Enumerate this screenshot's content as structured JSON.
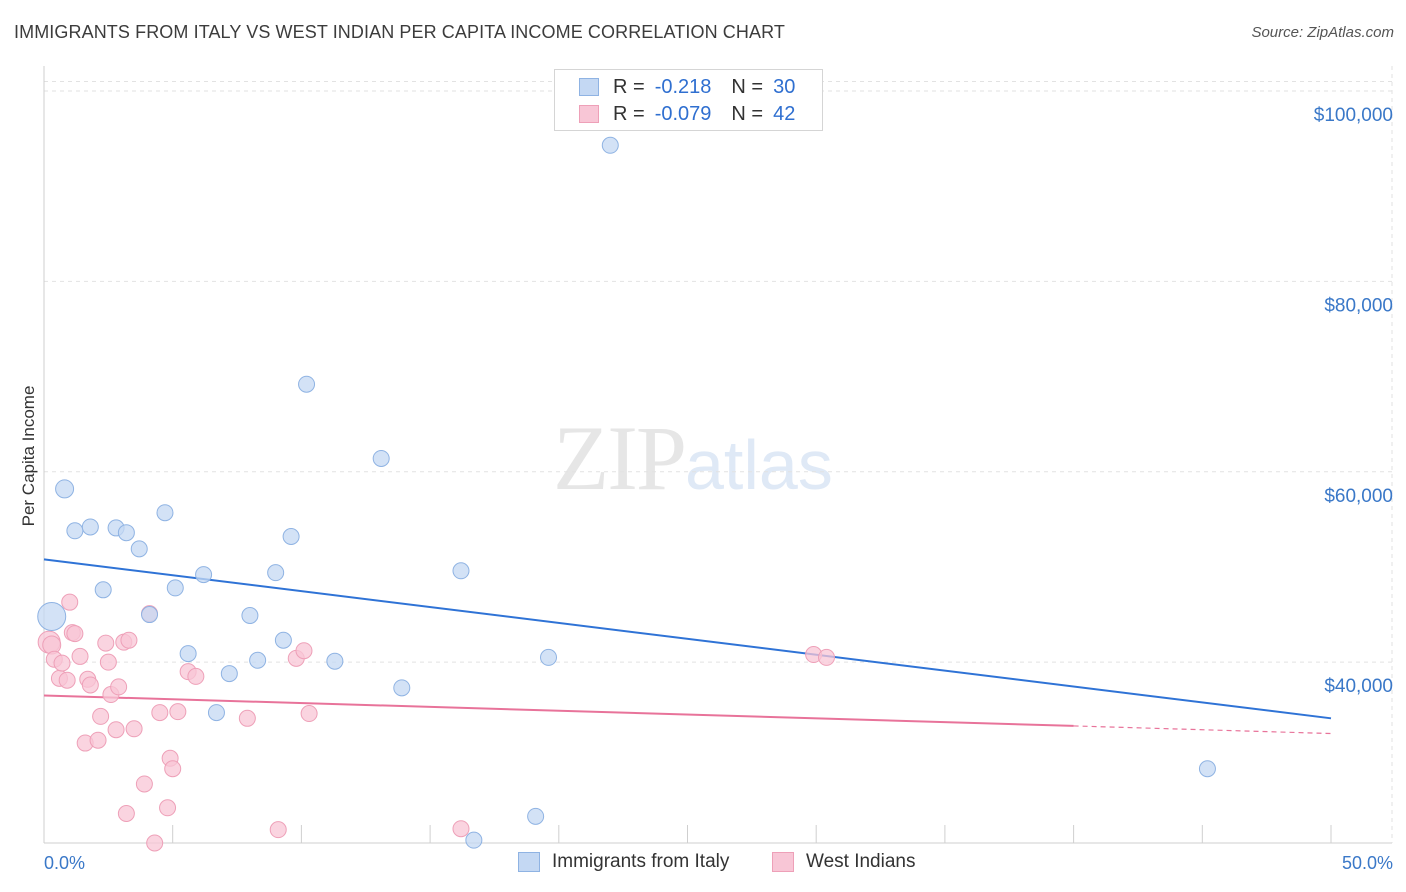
{
  "header": {
    "title": "IMMIGRANTS FROM ITALY VS WEST INDIAN PER CAPITA INCOME CORRELATION CHART",
    "source": "Source: ZipAtlas.com"
  },
  "watermark": {
    "zip": "ZIP",
    "atlas": "atlas"
  },
  "legend": {
    "rows": [
      {
        "r_label": "R =",
        "r_value": "-0.218",
        "n_label": "N =",
        "n_value": "30"
      },
      {
        "r_label": "R =",
        "r_value": "-0.079",
        "n_label": "N =",
        "n_value": "42"
      }
    ]
  },
  "bottom_legend": {
    "series1": "Immigrants from Italy",
    "series2": "West Indians"
  },
  "colors": {
    "blue_fill": "#c4d8f3",
    "blue_stroke": "#8fb3e3",
    "blue_line": "#2f73d6",
    "pink_fill": "#f8c6d6",
    "pink_stroke": "#eea0b8",
    "pink_line": "#e8739a"
  },
  "chart_data": {
    "type": "scatter",
    "title": "IMMIGRANTS FROM ITALY VS WEST INDIAN PER CAPITA INCOME CORRELATION CHART",
    "xlabel": "",
    "ylabel": "Per Capita Income",
    "xlim": [
      0,
      50
    ],
    "ylim": [
      21000,
      102000
    ],
    "x_tick_labels": [
      "0.0%",
      "50.0%"
    ],
    "y_ticks": [
      40000,
      60000,
      80000,
      100000
    ],
    "y_tick_labels": [
      "$40,000",
      "$60,000",
      "$80,000",
      "$100,000"
    ],
    "series": [
      {
        "name": "Immigrants from Italy",
        "R": -0.218,
        "N": 30,
        "trend": {
          "x0": 0,
          "y0": 50800,
          "x1": 50,
          "y1": 34100
        },
        "points": [
          [
            0.3,
            44800,
            14
          ],
          [
            0.8,
            58200,
            9
          ],
          [
            1.2,
            53800,
            8
          ],
          [
            1.8,
            54200,
            8
          ],
          [
            2.3,
            47600,
            8
          ],
          [
            2.8,
            54100,
            8
          ],
          [
            3.2,
            53600,
            8
          ],
          [
            3.7,
            51900,
            8
          ],
          [
            4.1,
            45000,
            8
          ],
          [
            4.7,
            55700,
            8
          ],
          [
            5.1,
            47800,
            8
          ],
          [
            5.6,
            40900,
            8
          ],
          [
            6.2,
            49200,
            8
          ],
          [
            6.7,
            34700,
            8
          ],
          [
            7.2,
            38800,
            8
          ],
          [
            8.0,
            44900,
            8
          ],
          [
            8.3,
            40200,
            8
          ],
          [
            9.0,
            49400,
            8
          ],
          [
            9.3,
            42300,
            8
          ],
          [
            9.6,
            53200,
            8
          ],
          [
            10.2,
            69200,
            8
          ],
          [
            11.3,
            40100,
            8
          ],
          [
            13.1,
            61400,
            8
          ],
          [
            13.9,
            37300,
            8
          ],
          [
            16.2,
            49600,
            8
          ],
          [
            16.7,
            21300,
            8
          ],
          [
            19.1,
            23800,
            8
          ],
          [
            19.6,
            40500,
            8
          ],
          [
            22.0,
            94300,
            8
          ],
          [
            45.2,
            28800,
            8
          ]
        ]
      },
      {
        "name": "West Indians",
        "R": -0.079,
        "N": 42,
        "trend": {
          "x0": 0,
          "y0": 36500,
          "x1": 40.0,
          "y1": 33300,
          "dash_to_x": 50,
          "dash_to_y": 32500
        },
        "points": [
          [
            0.2,
            42100,
            11
          ],
          [
            0.3,
            41800,
            9
          ],
          [
            0.4,
            40300,
            8
          ],
          [
            0.6,
            38300,
            8
          ],
          [
            0.7,
            39900,
            8
          ],
          [
            0.9,
            38100,
            8
          ],
          [
            1.0,
            46300,
            8
          ],
          [
            1.1,
            43100,
            8
          ],
          [
            1.2,
            43000,
            8
          ],
          [
            1.4,
            40600,
            8
          ],
          [
            1.6,
            31500,
            8
          ],
          [
            1.7,
            38200,
            8
          ],
          [
            1.8,
            37600,
            8
          ],
          [
            2.1,
            31800,
            8
          ],
          [
            2.2,
            34300,
            8
          ],
          [
            2.4,
            42000,
            8
          ],
          [
            2.5,
            40000,
            8
          ],
          [
            2.6,
            36600,
            8
          ],
          [
            2.8,
            32900,
            8
          ],
          [
            2.9,
            37400,
            8
          ],
          [
            3.1,
            42100,
            8
          ],
          [
            3.2,
            24100,
            8
          ],
          [
            3.3,
            42300,
            8
          ],
          [
            3.5,
            33000,
            8
          ],
          [
            3.9,
            27200,
            8
          ],
          [
            4.1,
            45100,
            8
          ],
          [
            4.3,
            21000,
            8
          ],
          [
            4.5,
            34700,
            8
          ],
          [
            4.8,
            24700,
            8
          ],
          [
            4.9,
            29900,
            8
          ],
          [
            5.0,
            28800,
            8
          ],
          [
            5.2,
            34800,
            8
          ],
          [
            5.6,
            39000,
            8
          ],
          [
            5.9,
            38500,
            8
          ],
          [
            7.9,
            34100,
            8
          ],
          [
            9.1,
            22400,
            8
          ],
          [
            9.8,
            40400,
            8
          ],
          [
            10.1,
            41200,
            8
          ],
          [
            10.3,
            34600,
            8
          ],
          [
            16.2,
            22500,
            8
          ],
          [
            29.9,
            40800,
            8
          ],
          [
            30.4,
            40500,
            8
          ]
        ]
      }
    ]
  }
}
